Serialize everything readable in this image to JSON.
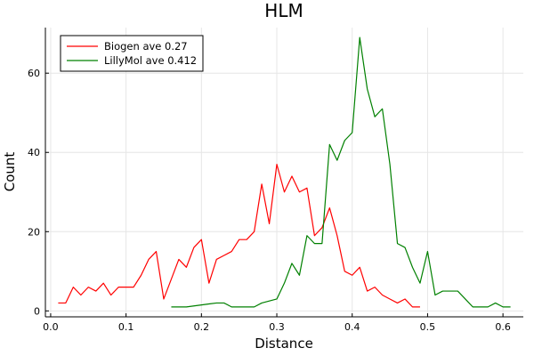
{
  "chart_data": {
    "type": "line",
    "title": "HLM",
    "xlabel": "Distance",
    "ylabel": "Count",
    "xlim": [
      -0.007,
      0.627
    ],
    "ylim": [
      -1.5,
      71.5
    ],
    "xticks": [
      0.0,
      0.1,
      0.2,
      0.3,
      0.4,
      0.5,
      0.6
    ],
    "xtick_labels": [
      "0.0",
      "0.1",
      "0.2",
      "0.3",
      "0.4",
      "0.5",
      "0.6"
    ],
    "yticks": [
      0,
      20,
      40,
      60
    ],
    "ytick_labels": [
      "0",
      "20",
      "40",
      "60"
    ],
    "grid": true,
    "legend_position": "top-left",
    "series": [
      {
        "name": "Biogen ave 0.27",
        "color": "#ff0000",
        "x": [
          0.01,
          0.02,
          0.03,
          0.04,
          0.05,
          0.06,
          0.07,
          0.08,
          0.09,
          0.1,
          0.11,
          0.12,
          0.13,
          0.14,
          0.15,
          0.16,
          0.17,
          0.18,
          0.19,
          0.2,
          0.21,
          0.22,
          0.23,
          0.24,
          0.25,
          0.26,
          0.27,
          0.28,
          0.29,
          0.3,
          0.31,
          0.32,
          0.33,
          0.34,
          0.35,
          0.36,
          0.37,
          0.38,
          0.39,
          0.4,
          0.41,
          0.42,
          0.43,
          0.44,
          0.45,
          0.46,
          0.47,
          0.48,
          0.49
        ],
        "y": [
          2,
          2,
          6,
          4,
          6,
          5,
          7,
          4,
          6,
          6,
          6,
          9,
          13,
          15,
          3,
          8,
          13,
          11,
          16,
          18,
          7,
          13,
          14,
          15,
          18,
          18,
          20,
          32,
          22,
          37,
          30,
          34,
          30,
          31,
          19,
          21,
          26,
          19,
          10,
          9,
          11,
          5,
          6,
          4,
          3,
          2,
          3,
          1,
          1
        ]
      },
      {
        "name": "LillyMol ave 0.412",
        "color": "#008000",
        "x": [
          0.16,
          0.17,
          0.18,
          0.19,
          0.2,
          0.21,
          0.22,
          0.23,
          0.24,
          0.25,
          0.26,
          0.27,
          0.28,
          0.29,
          0.3,
          0.31,
          0.32,
          0.33,
          0.34,
          0.35,
          0.36,
          0.37,
          0.38,
          0.39,
          0.4,
          0.41,
          0.42,
          0.43,
          0.44,
          0.45,
          0.46,
          0.47,
          0.48,
          0.49,
          0.5,
          0.51,
          0.52,
          0.53,
          0.54,
          0.55,
          0.56,
          0.57,
          0.58,
          0.59,
          0.6,
          0.61
        ],
        "y": [
          1,
          1,
          1,
          1.25,
          1.5,
          1.75,
          2,
          2,
          1,
          1,
          1,
          1,
          2,
          2.5,
          3,
          7,
          12,
          9,
          19,
          17,
          17,
          42,
          38,
          43,
          45,
          69,
          56,
          49,
          51,
          37,
          17,
          16,
          11,
          7,
          15,
          4,
          5,
          5,
          5,
          3,
          1,
          1,
          1,
          2,
          1,
          1
        ]
      }
    ]
  }
}
